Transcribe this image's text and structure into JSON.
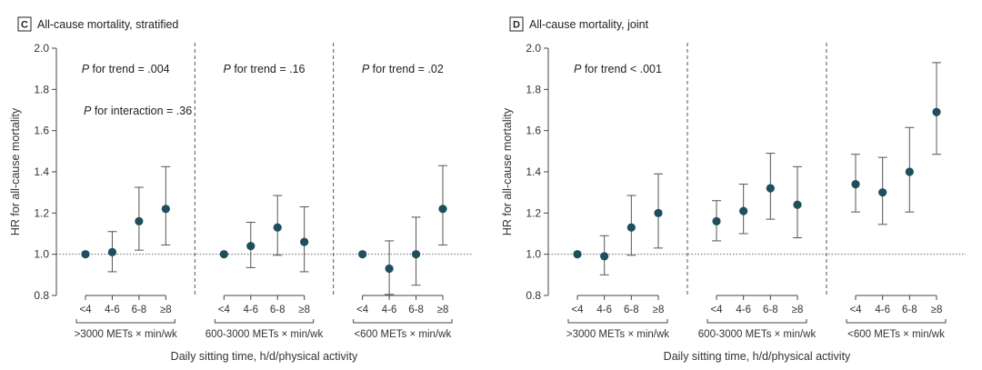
{
  "chart_data": [
    {
      "type": "scatter",
      "panel": "C",
      "title": "All-cause mortality, stratified",
      "ylabel": "HR for all-cause mortality",
      "xlabel": "Daily sitting time, h/d/physical activity",
      "ylim": [
        0.8,
        2.0
      ],
      "yticks": [
        "0.8",
        "1.0",
        "1.2",
        "1.4",
        "1.6",
        "1.8",
        "2.0"
      ],
      "reference_line": 1.0,
      "categories": [
        "<4",
        "4-6",
        "6-8",
        "≥8"
      ],
      "groups": [
        {
          "name": ">3000 METs × min/wk",
          "annotations": [
            {
              "prefix": "P",
              "text": " for trend = .004"
            },
            {
              "prefix": "P",
              "text": " for interaction = .36"
            }
          ],
          "points": [
            {
              "hr": 1.0,
              "lo": null,
              "hi": null
            },
            {
              "hr": 1.01,
              "lo": 0.915,
              "hi": 1.11
            },
            {
              "hr": 1.16,
              "lo": 1.02,
              "hi": 1.325
            },
            {
              "hr": 1.22,
              "lo": 1.045,
              "hi": 1.425
            }
          ]
        },
        {
          "name": "600-3000 METs × min/wk",
          "annotations": [
            {
              "prefix": "P",
              "text": " for trend = .16"
            }
          ],
          "points": [
            {
              "hr": 1.0,
              "lo": null,
              "hi": null
            },
            {
              "hr": 1.04,
              "lo": 0.935,
              "hi": 1.155
            },
            {
              "hr": 1.13,
              "lo": 0.995,
              "hi": 1.285
            },
            {
              "hr": 1.06,
              "lo": 0.915,
              "hi": 1.23
            }
          ]
        },
        {
          "name": "<600 METs × min/wk",
          "annotations": [
            {
              "prefix": "P",
              "text": " for trend = .02"
            }
          ],
          "points": [
            {
              "hr": 1.0,
              "lo": null,
              "hi": null
            },
            {
              "hr": 0.93,
              "lo": 0.805,
              "hi": 1.065
            },
            {
              "hr": 1.0,
              "lo": 0.85,
              "hi": 1.18
            },
            {
              "hr": 1.22,
              "lo": 1.045,
              "hi": 1.43
            }
          ]
        }
      ]
    },
    {
      "type": "scatter",
      "panel": "D",
      "title": "All-cause mortality, joint",
      "ylabel": "HR for all-cause mortality",
      "xlabel": "Daily sitting time, h/d/physical activity",
      "ylim": [
        0.8,
        2.0
      ],
      "yticks": [
        "0.8",
        "1.0",
        "1.2",
        "1.4",
        "1.6",
        "1.8",
        "2.0"
      ],
      "reference_line": 1.0,
      "categories": [
        "<4",
        "4-6",
        "6-8",
        "≥8"
      ],
      "groups": [
        {
          "name": ">3000 METs × min/wk",
          "annotations": [
            {
              "prefix": "P",
              "text": " for trend < .001"
            }
          ],
          "points": [
            {
              "hr": 1.0,
              "lo": null,
              "hi": null
            },
            {
              "hr": 0.99,
              "lo": 0.9,
              "hi": 1.09
            },
            {
              "hr": 1.13,
              "lo": 0.995,
              "hi": 1.285
            },
            {
              "hr": 1.2,
              "lo": 1.03,
              "hi": 1.39
            }
          ]
        },
        {
          "name": "600-3000 METs × min/wk",
          "annotations": [],
          "points": [
            {
              "hr": 1.16,
              "lo": 1.065,
              "hi": 1.26
            },
            {
              "hr": 1.21,
              "lo": 1.1,
              "hi": 1.34
            },
            {
              "hr": 1.32,
              "lo": 1.17,
              "hi": 1.49
            },
            {
              "hr": 1.24,
              "lo": 1.08,
              "hi": 1.425
            }
          ]
        },
        {
          "name": "<600 METs × min/wk",
          "annotations": [],
          "points": [
            {
              "hr": 1.34,
              "lo": 1.205,
              "hi": 1.485
            },
            {
              "hr": 1.3,
              "lo": 1.145,
              "hi": 1.47
            },
            {
              "hr": 1.4,
              "lo": 1.205,
              "hi": 1.615
            },
            {
              "hr": 1.69,
              "lo": 1.485,
              "hi": 1.93
            }
          ]
        }
      ]
    }
  ],
  "colors": {
    "point": "#1f4e5c",
    "axis": "#444444",
    "divider": "#555555",
    "reference": "#666666"
  }
}
